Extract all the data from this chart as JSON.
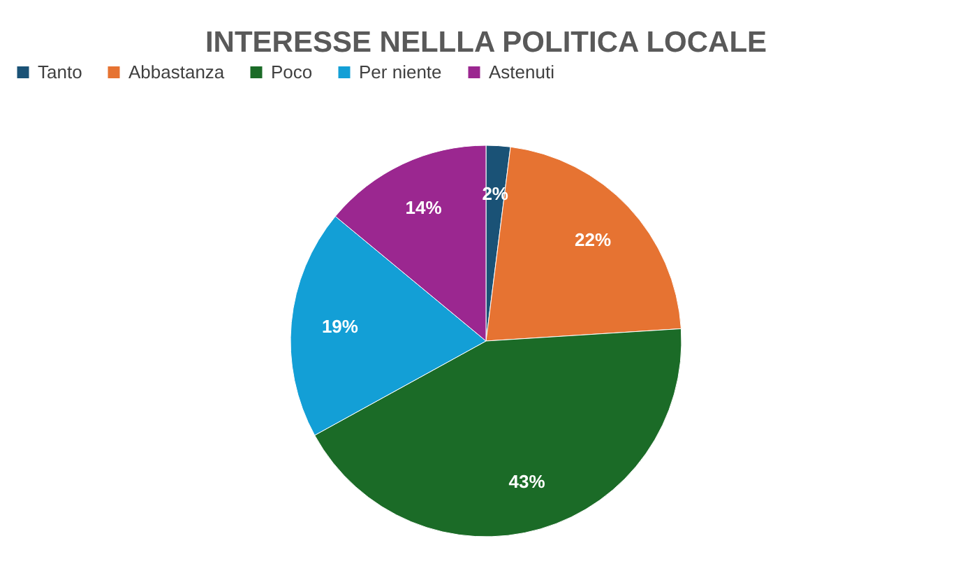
{
  "chart_data": {
    "type": "pie",
    "title": "INTERESSE NELLLA POLITICA LOCALE",
    "categories": [
      "Tanto",
      "Abbastanza",
      "Poco",
      "Per niente",
      "Astenuti"
    ],
    "values": [
      2,
      22,
      43,
      19,
      14
    ],
    "colors": [
      "#1a5276",
      "#e67332",
      "#1b6b27",
      "#139fd6",
      "#9b2790"
    ],
    "value_labels": [
      "2%",
      "22%",
      "43%",
      "19%",
      "14%"
    ],
    "legend": "top"
  }
}
